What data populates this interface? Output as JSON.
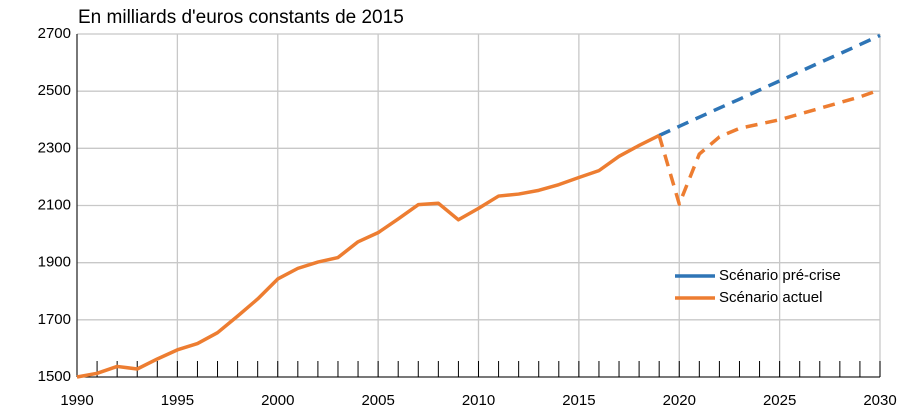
{
  "chart_data": {
    "type": "line",
    "title": "En milliards d'euros constants de 2015",
    "x": [
      1990,
      1991,
      1992,
      1993,
      1994,
      1995,
      1996,
      1997,
      1998,
      1999,
      2000,
      2001,
      2002,
      2003,
      2004,
      2005,
      2006,
      2007,
      2008,
      2009,
      2010,
      2011,
      2012,
      2013,
      2014,
      2015,
      2016,
      2017,
      2018,
      2019,
      2020,
      2021,
      2022,
      2023,
      2024,
      2025,
      2026,
      2027,
      2028,
      2029,
      2030
    ],
    "projection_from": 2019,
    "series": [
      {
        "name": "Scénario pré-crise",
        "color": "#2e75b6",
        "values": [
          null,
          null,
          null,
          null,
          null,
          null,
          null,
          null,
          null,
          null,
          null,
          null,
          null,
          null,
          null,
          null,
          null,
          null,
          null,
          null,
          null,
          null,
          null,
          null,
          null,
          null,
          null,
          null,
          null,
          2345,
          2377,
          2409,
          2441,
          2472,
          2504,
          2536,
          2568,
          2600,
          2631,
          2663,
          2695
        ]
      },
      {
        "name": "Scénario actuel",
        "color": "#ed7d31",
        "values": [
          1500,
          1513,
          1537,
          1528,
          1563,
          1595,
          1617,
          1655,
          1713,
          1773,
          1843,
          1880,
          1902,
          1918,
          1973,
          2005,
          2053,
          2103,
          2108,
          2050,
          2090,
          2133,
          2140,
          2153,
          2173,
          2198,
          2222,
          2272,
          2310,
          2345,
          2105,
          2280,
          2340,
          2370,
          2385,
          2400,
          2420,
          2440,
          2460,
          2480,
          2505
        ]
      }
    ],
    "xlim": [
      1990,
      2030
    ],
    "xticks": [
      1990,
      1995,
      2000,
      2005,
      2010,
      2015,
      2020,
      2025,
      2030
    ],
    "ylim": [
      1500,
      2700
    ],
    "yticks": [
      1500,
      1700,
      1900,
      2100,
      2300,
      2500,
      2700
    ],
    "grid": true,
    "legend": "lower right"
  }
}
